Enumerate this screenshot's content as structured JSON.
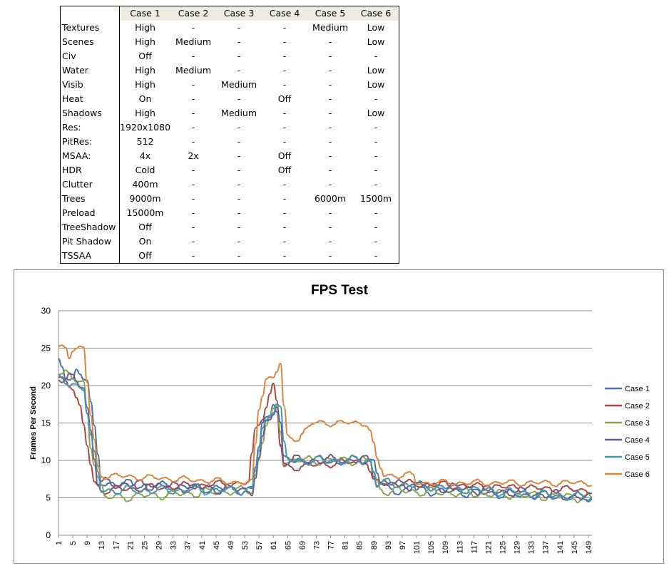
{
  "table": {
    "headers": [
      "",
      "Case 1",
      "Case 2",
      "Case 3",
      "Case 4",
      "Case 5",
      "Case 6"
    ],
    "rows": [
      [
        "Textures",
        "High",
        "-",
        "-",
        "-",
        "Medium",
        "Low"
      ],
      [
        "Scenes",
        "High",
        "Medium",
        "-",
        "-",
        "-",
        "Low"
      ],
      [
        "Civ",
        "Off",
        "-",
        "-",
        "-",
        "-",
        "-"
      ],
      [
        "Water",
        "High",
        "Medium",
        "-",
        "-",
        "-",
        "Low"
      ],
      [
        "Visib",
        "High",
        "-",
        "Medium",
        "-",
        "-",
        "Low"
      ],
      [
        "Heat",
        "On",
        "-",
        "-",
        "Off",
        "-",
        "-"
      ],
      [
        "Shadows",
        "High",
        "-",
        "Medium",
        "-",
        "-",
        "Low"
      ],
      [
        "Res:",
        "1920x1080",
        "-",
        "-",
        "-",
        "-",
        "-"
      ],
      [
        "PitRes:",
        "512",
        "-",
        "-",
        "-",
        "-",
        "-"
      ],
      [
        "MSAA:",
        "4x",
        "2x",
        "-",
        "Off",
        "-",
        "-"
      ],
      [
        "HDR",
        "Cold",
        "-",
        "-",
        "Off",
        "-",
        "-"
      ],
      [
        "Clutter",
        "400m",
        "-",
        "-",
        "-",
        "-",
        "-"
      ],
      [
        "Trees",
        "9000m",
        "-",
        "-",
        "-",
        "6000m",
        "1500m"
      ],
      [
        "Preload",
        "15000m",
        "-",
        "-",
        "-",
        "-",
        "-"
      ],
      [
        "TreeShadow",
        "Off",
        "-",
        "-",
        "-",
        "-",
        "-"
      ],
      [
        "Pit Shadow",
        "On",
        "-",
        "-",
        "-",
        "-",
        "-"
      ],
      [
        "TSSAA",
        "Off",
        "-",
        "-",
        "-",
        "-",
        "-"
      ]
    ]
  },
  "chart_data": {
    "type": "line",
    "title": "FPS Test",
    "xlabel": "",
    "ylabel": "Frames Per Second",
    "x_range": [
      1,
      150
    ],
    "x_tick_labels": [
      "1",
      "5",
      "9",
      "13",
      "17",
      "21",
      "25",
      "29",
      "33",
      "37",
      "41",
      "45",
      "49",
      "53",
      "57",
      "61",
      "65",
      "69",
      "73",
      "77",
      "81",
      "85",
      "89",
      "93",
      "97",
      "101",
      "105",
      "109",
      "113",
      "117",
      "121",
      "125",
      "129",
      "133",
      "137",
      "141",
      "145",
      "149"
    ],
    "ylim": [
      0,
      30
    ],
    "y_ticks": [
      0,
      5,
      10,
      15,
      20,
      25,
      30
    ],
    "grid": true,
    "legend": "right",
    "series": [
      {
        "name": "Case 1",
        "color": "#4572a7",
        "keyframes": [
          [
            1,
            23
          ],
          [
            3,
            21
          ],
          [
            5,
            21
          ],
          [
            6,
            22
          ],
          [
            9,
            21
          ],
          [
            11,
            14
          ],
          [
            13,
            7
          ],
          [
            55,
            6
          ],
          [
            57,
            12
          ],
          [
            58,
            15
          ],
          [
            60,
            16
          ],
          [
            61,
            18
          ],
          [
            62,
            17
          ],
          [
            63,
            12
          ],
          [
            64,
            10
          ],
          [
            89,
            10
          ],
          [
            91,
            7
          ],
          [
            93,
            6
          ],
          [
            98,
            6
          ],
          [
            100,
            7
          ],
          [
            101,
            6
          ],
          [
            150,
            5
          ]
        ],
        "amp": 0.7
      },
      {
        "name": "Case 2",
        "color": "#aa4643",
        "keyframes": [
          [
            1,
            21
          ],
          [
            5,
            20
          ],
          [
            7,
            17
          ],
          [
            9,
            12
          ],
          [
            11,
            7
          ],
          [
            13,
            6
          ],
          [
            54,
            7
          ],
          [
            56,
            14
          ],
          [
            58,
            16
          ],
          [
            61,
            20
          ],
          [
            62,
            18
          ],
          [
            63,
            12
          ],
          [
            64,
            9
          ],
          [
            87,
            10
          ],
          [
            89,
            7
          ],
          [
            91,
            7
          ],
          [
            150,
            6
          ]
        ],
        "amp": 0.6
      },
      {
        "name": "Case 3",
        "color": "#89a54e",
        "keyframes": [
          [
            1,
            22
          ],
          [
            3,
            22
          ],
          [
            5,
            21
          ],
          [
            8,
            20
          ],
          [
            10,
            12
          ],
          [
            12,
            8
          ],
          [
            14,
            5
          ],
          [
            55,
            6
          ],
          [
            57,
            10
          ],
          [
            59,
            15
          ],
          [
            62,
            17
          ],
          [
            63,
            14
          ],
          [
            64,
            10
          ],
          [
            88,
            10
          ],
          [
            90,
            7
          ],
          [
            91,
            6
          ],
          [
            150,
            5
          ]
        ],
        "amp": 0.7
      },
      {
        "name": "Case 4",
        "color": "#71588f",
        "keyframes": [
          [
            1,
            21
          ],
          [
            4,
            21
          ],
          [
            8,
            20
          ],
          [
            10,
            14
          ],
          [
            12,
            7
          ],
          [
            55,
            6
          ],
          [
            57,
            10
          ],
          [
            59,
            15
          ],
          [
            62,
            17
          ],
          [
            63,
            15
          ],
          [
            64,
            10
          ],
          [
            88,
            10
          ],
          [
            90,
            7
          ],
          [
            91,
            7
          ],
          [
            150,
            5
          ]
        ],
        "amp": 0.8
      },
      {
        "name": "Case 5",
        "color": "#4198af",
        "keyframes": [
          [
            1,
            21
          ],
          [
            4,
            20
          ],
          [
            8,
            20
          ],
          [
            10,
            13
          ],
          [
            13,
            6
          ],
          [
            55,
            6
          ],
          [
            58,
            14
          ],
          [
            62,
            18
          ],
          [
            63,
            17
          ],
          [
            64,
            12
          ],
          [
            65,
            10
          ],
          [
            88,
            10
          ],
          [
            90,
            7
          ],
          [
            91,
            7
          ],
          [
            150,
            5
          ]
        ],
        "amp": 0.7
      },
      {
        "name": "Case 6",
        "color": "#db843d",
        "keyframes": [
          [
            1,
            25
          ],
          [
            3,
            25
          ],
          [
            4,
            24
          ],
          [
            5,
            25
          ],
          [
            8,
            25
          ],
          [
            10,
            16
          ],
          [
            12,
            9
          ],
          [
            13,
            8
          ],
          [
            55,
            7
          ],
          [
            57,
            17
          ],
          [
            59,
            21
          ],
          [
            61,
            21
          ],
          [
            63,
            23
          ],
          [
            64,
            17
          ],
          [
            65,
            13
          ],
          [
            68,
            13
          ],
          [
            70,
            14
          ],
          [
            72,
            15
          ],
          [
            87,
            15
          ],
          [
            88,
            14
          ],
          [
            90,
            10
          ],
          [
            92,
            8
          ],
          [
            100,
            8
          ],
          [
            101,
            7
          ],
          [
            150,
            7
          ]
        ],
        "amp": 0.5
      }
    ]
  }
}
